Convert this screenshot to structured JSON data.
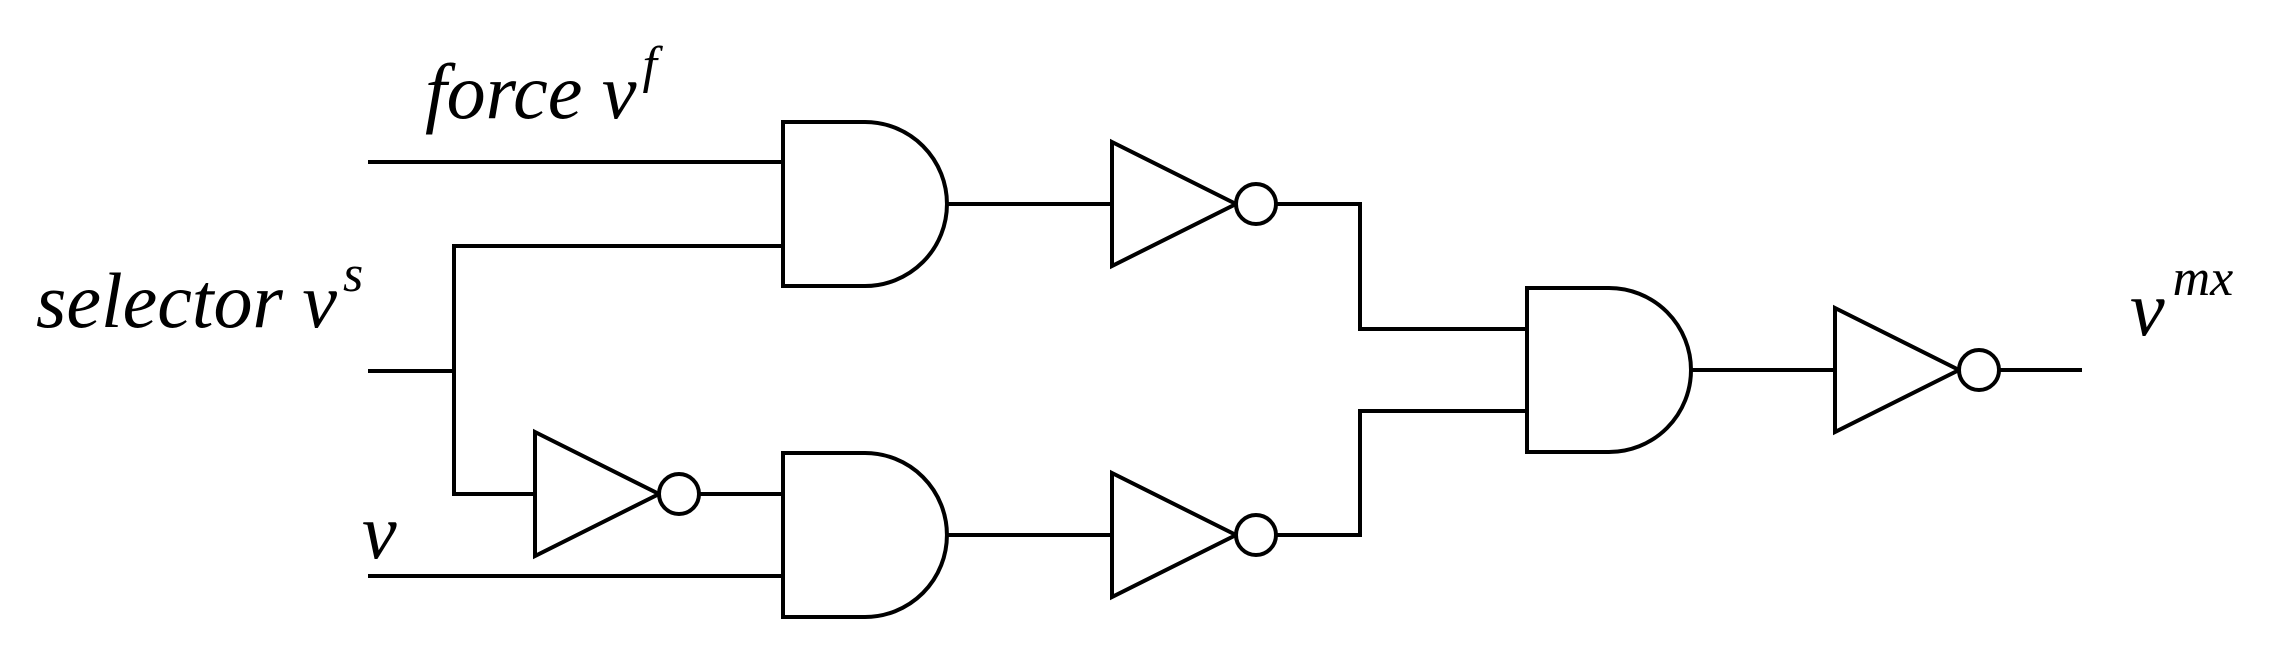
{
  "labels": {
    "force": {
      "base": "force v",
      "sup": "f"
    },
    "selector": {
      "base": "selector v",
      "sup": "s"
    },
    "v": {
      "base": "v"
    },
    "output": {
      "base": "v",
      "sup": "mx"
    }
  },
  "gates": [
    {
      "id": "and1",
      "type": "AND"
    },
    {
      "id": "and2",
      "type": "AND"
    },
    {
      "id": "and3",
      "type": "AND"
    },
    {
      "id": "not-sel",
      "type": "NOT"
    },
    {
      "id": "not1",
      "type": "NOT"
    },
    {
      "id": "not2",
      "type": "NOT"
    },
    {
      "id": "not-out",
      "type": "NOT"
    }
  ]
}
